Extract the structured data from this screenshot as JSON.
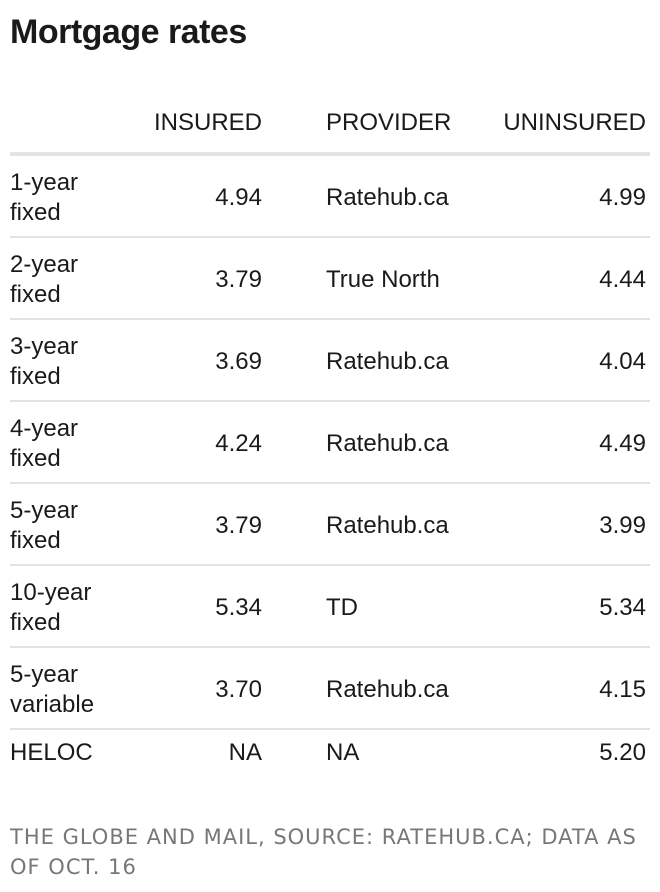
{
  "title": "Mortgage rates",
  "columns": {
    "term": "",
    "insured": "INSURED",
    "provider": "PROVIDER",
    "uninsured": "UNINSURED"
  },
  "chart_data": {
    "type": "table",
    "title": "Mortgage rates",
    "columns": [
      "",
      "INSURED",
      "PROVIDER",
      "UNINSURED"
    ],
    "rows": [
      {
        "term": "1-year fixed",
        "insured": "4.94",
        "provider": "Ratehub.ca",
        "uninsured": "4.99"
      },
      {
        "term": "2-year fixed",
        "insured": "3.79",
        "provider": "True North",
        "uninsured": "4.44"
      },
      {
        "term": "3-year fixed",
        "insured": "3.69",
        "provider": "Ratehub.ca",
        "uninsured": "4.04"
      },
      {
        "term": "4-year fixed",
        "insured": "4.24",
        "provider": "Ratehub.ca",
        "uninsured": "4.49"
      },
      {
        "term": "5-year fixed",
        "insured": "3.79",
        "provider": "Ratehub.ca",
        "uninsured": "3.99"
      },
      {
        "term": "10-year fixed",
        "insured": "5.34",
        "provider": "TD",
        "uninsured": "5.34"
      },
      {
        "term": "5-year variable",
        "insured": "3.70",
        "provider": "Ratehub.ca",
        "uninsured": "4.15"
      },
      {
        "term": "HELOC",
        "insured": "NA",
        "provider": "NA",
        "uninsured": "5.20"
      }
    ]
  },
  "source": "THE GLOBE AND MAIL, SOURCE: RATEHUB.CA; DATA AS OF OCT. 16",
  "colors": {
    "text": "#1a1a1a",
    "rule": "#e3e3e3",
    "source": "#777777"
  }
}
